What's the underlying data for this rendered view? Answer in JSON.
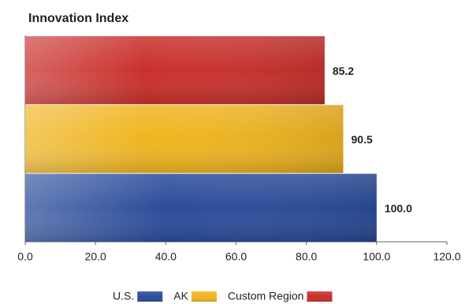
{
  "chart_data": {
    "type": "bar",
    "orientation": "horizontal",
    "title": "Innovation Index",
    "series": [
      {
        "name": "U.S.",
        "color": "#2b4c9b",
        "values": [
          100
        ],
        "value_labels": [
          "100.0"
        ]
      },
      {
        "name": "AK",
        "color": "#efb41f",
        "values": [
          90.5
        ],
        "value_labels": [
          "90.5"
        ]
      },
      {
        "name": "Custom Region",
        "color": "#c9302c",
        "values": [
          85.2
        ],
        "value_labels": [
          "85.2"
        ]
      }
    ],
    "xlim": [
      0,
      120
    ],
    "xticks": [
      {
        "value": 0,
        "label": "0.0"
      },
      {
        "value": 20,
        "label": "20.0"
      },
      {
        "value": 40,
        "label": "40.0"
      },
      {
        "value": 60,
        "label": "60.0"
      },
      {
        "value": 80,
        "label": "80.0"
      },
      {
        "value": 100,
        "label": "100.0"
      },
      {
        "value": 120,
        "label": "120.0"
      }
    ],
    "legend": "bottom"
  }
}
